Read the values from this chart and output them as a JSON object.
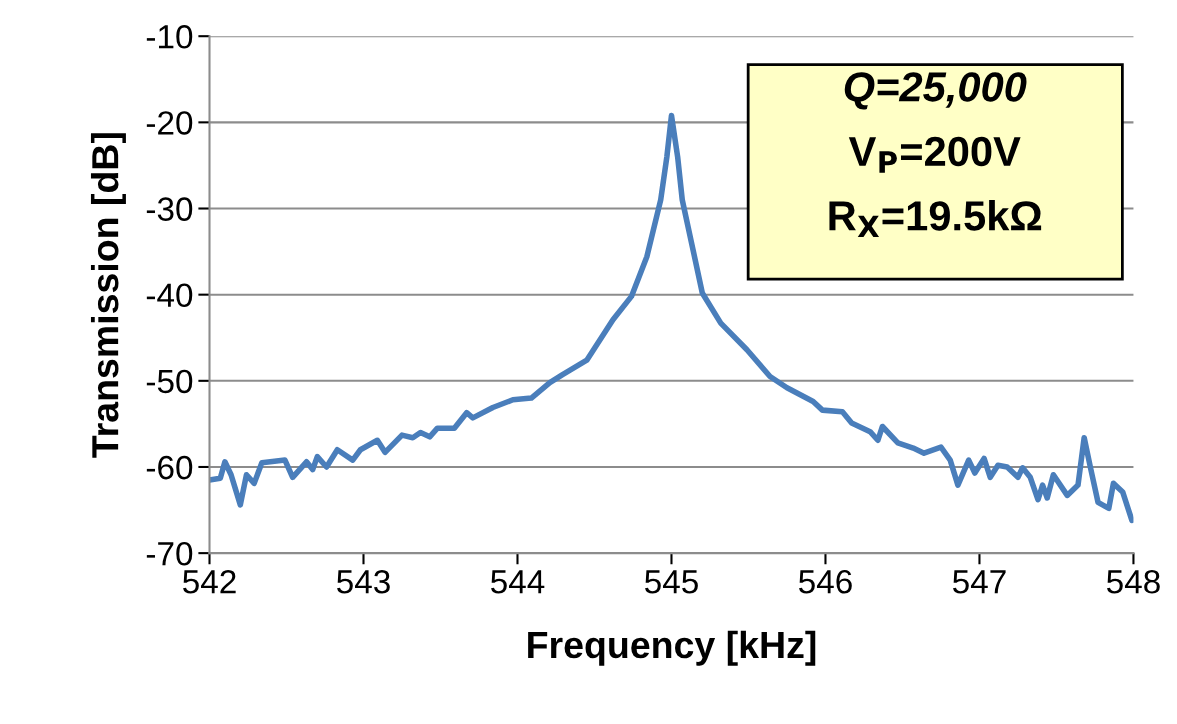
{
  "chart_data": {
    "type": "line",
    "xlabel": "Frequency [kHz]",
    "ylabel": "Transmission [dB]",
    "annotations": [
      "Q=25,000",
      "V$_{P}$=200V",
      "R$_{X}$=19.5kΩ"
    ],
    "xlim": [
      542,
      548
    ],
    "xticks": [
      542,
      543,
      544,
      545,
      546,
      547,
      548
    ],
    "ylim": [
      -70,
      -10
    ],
    "yticks": [
      -70,
      -60,
      -50,
      -40,
      -30,
      -20,
      -10
    ],
    "grid": "y",
    "legend": false,
    "marker": "none",
    "line_style": "solid",
    "series": [
      {
        "color": "#4a7ebb",
        "x": [
          542.0,
          542.07,
          542.1,
          542.14,
          542.2,
          542.24,
          542.29,
          542.34,
          542.49,
          542.54,
          542.63,
          542.67,
          542.7,
          542.76,
          542.83,
          542.93,
          542.98,
          543.09,
          543.14,
          543.25,
          543.32,
          543.37,
          543.43,
          543.48,
          543.59,
          543.67,
          543.71,
          543.84,
          543.97,
          544.09,
          544.21,
          544.29,
          544.45,
          544.62,
          544.74,
          544.84,
          544.93,
          544.97,
          545.0,
          545.04,
          545.07,
          545.14,
          545.2,
          545.32,
          545.49,
          545.64,
          545.75,
          545.92,
          545.98,
          546.11,
          546.17,
          546.29,
          546.34,
          546.37,
          546.47,
          546.57,
          546.64,
          546.75,
          546.81,
          546.86,
          546.93,
          546.97,
          547.03,
          547.07,
          547.12,
          547.18,
          547.25,
          547.28,
          547.33,
          547.38,
          547.41,
          547.44,
          547.48,
          547.57,
          547.64,
          547.68,
          547.72,
          547.77,
          547.84,
          547.87,
          547.93,
          547.99
        ],
        "values": [
          -61.5,
          -61.3,
          -59.4,
          -60.9,
          -64.4,
          -60.9,
          -61.9,
          -59.5,
          -59.2,
          -61.2,
          -59.4,
          -60.3,
          -58.8,
          -60.0,
          -58.0,
          -59.2,
          -58.0,
          -56.9,
          -58.3,
          -56.3,
          -56.6,
          -56.0,
          -56.5,
          -55.5,
          -55.5,
          -53.7,
          -54.3,
          -53.1,
          -52.2,
          -52.0,
          -50.2,
          -49.3,
          -47.6,
          -42.9,
          -40.2,
          -35.6,
          -29.0,
          -24.0,
          -19.2,
          -24.0,
          -29.0,
          -34.8,
          -39.8,
          -43.3,
          -46.4,
          -49.5,
          -50.8,
          -52.4,
          -53.4,
          -53.6,
          -54.9,
          -55.9,
          -56.9,
          -55.3,
          -57.2,
          -57.8,
          -58.4,
          -57.7,
          -59.2,
          -62.1,
          -59.2,
          -60.7,
          -59.0,
          -61.2,
          -59.8,
          -60.0,
          -61.2,
          -60.1,
          -61.2,
          -63.8,
          -62.1,
          -63.6,
          -60.9,
          -63.3,
          -62.1,
          -56.6,
          -60.0,
          -64.1,
          -64.8,
          -61.9,
          -62.9,
          -66.2
        ]
      }
    ]
  }
}
